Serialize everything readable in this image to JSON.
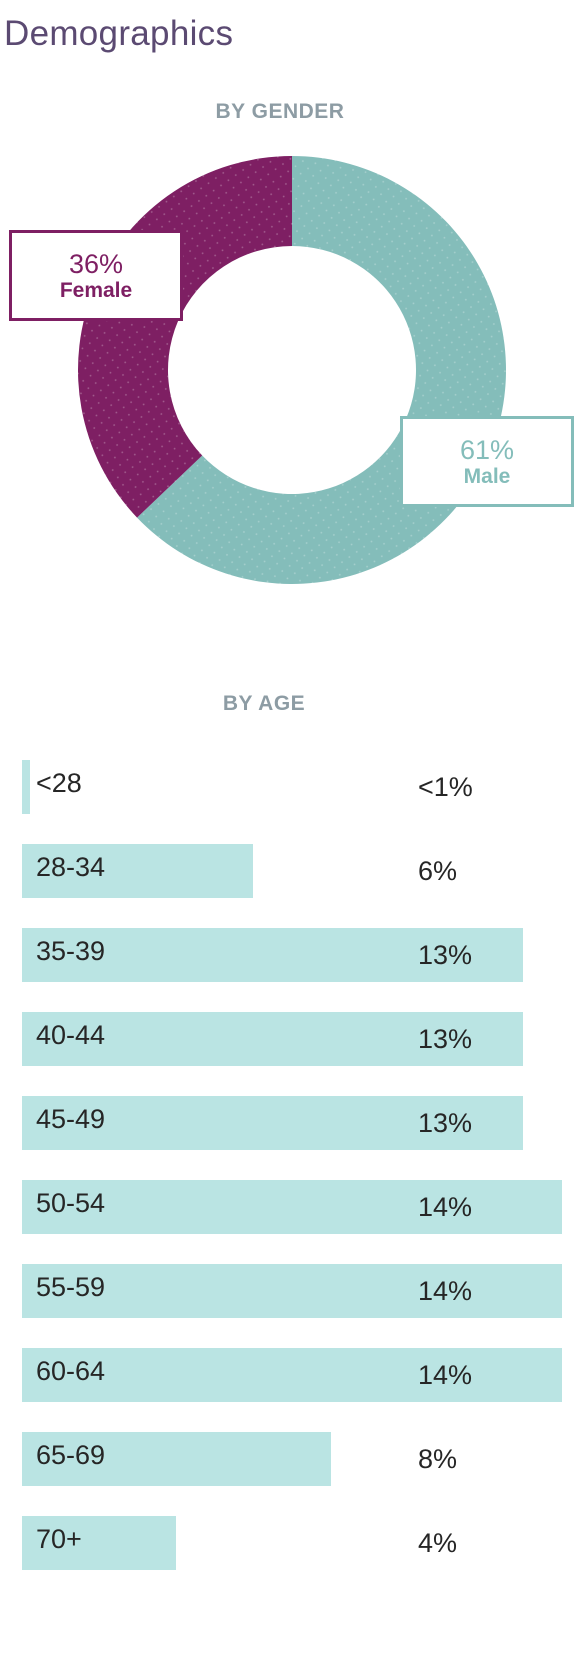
{
  "page": {
    "title": "Demographics"
  },
  "chart_data": [
    {
      "type": "pie",
      "variant": "donut",
      "title": "BY GENDER",
      "slices": [
        {
          "label": "Male",
          "value": 61,
          "display": "61%",
          "color": "#84bdba"
        },
        {
          "label": "Female",
          "value": 36,
          "display": "36%",
          "color": "#7e1f63"
        }
      ]
    },
    {
      "type": "bar",
      "orientation": "horizontal",
      "title": "BY AGE",
      "bar_color": "#bae4e3",
      "categories": [
        "<28",
        "28-34",
        "35-39",
        "40-44",
        "45-49",
        "50-54",
        "55-59",
        "60-64",
        "65-69",
        "70+"
      ],
      "values": [
        0.2,
        6,
        13,
        13,
        13,
        14,
        14,
        14,
        8,
        4
      ],
      "value_labels": [
        "<1%",
        "6%",
        "13%",
        "13%",
        "13%",
        "14%",
        "14%",
        "14%",
        "8%",
        "4%"
      ]
    }
  ]
}
